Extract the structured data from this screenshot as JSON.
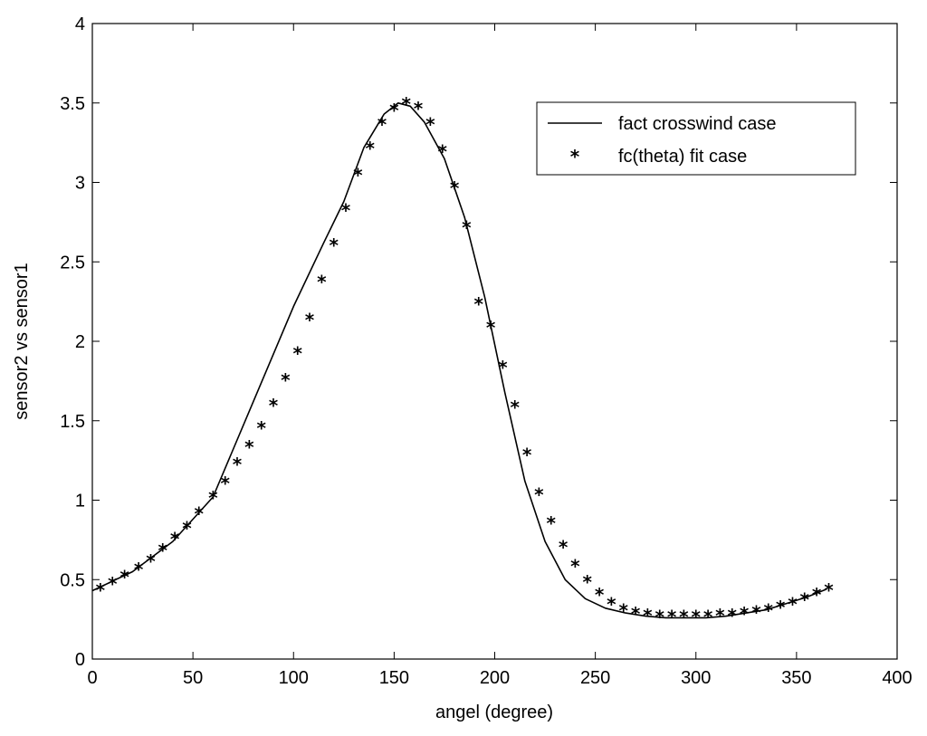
{
  "chart_data": {
    "type": "line",
    "title": "",
    "xlabel": "angel (degree)",
    "ylabel": "sensor2 vs sensor1",
    "xlim": [
      0,
      400
    ],
    "ylim": [
      0,
      4
    ],
    "xticks": [
      0,
      50,
      100,
      150,
      200,
      250,
      300,
      350,
      400
    ],
    "yticks": [
      0,
      0.5,
      1,
      1.5,
      2,
      2.5,
      3,
      3.5,
      4
    ],
    "xtick_labels": [
      "0",
      "50",
      "100",
      "150",
      "200",
      "250",
      "300",
      "350",
      "400"
    ],
    "ytick_labels": [
      "0",
      "0.5",
      "1",
      "1.5",
      "2",
      "2.5",
      "3",
      "3.5",
      "4"
    ],
    "grid": false,
    "legend": "top-right",
    "series": [
      {
        "name": "fact crosswind case",
        "style": "line",
        "color": "#000000",
        "x": [
          0,
          20,
          40,
          60,
          80,
          100,
          115,
          125,
          135,
          145,
          152,
          158,
          165,
          175,
          185,
          195,
          205,
          215,
          225,
          235,
          245,
          255,
          265,
          275,
          285,
          295,
          305,
          315,
          325,
          335,
          345,
          355,
          365
        ],
        "y": [
          0.43,
          0.55,
          0.74,
          1.02,
          1.62,
          2.22,
          2.62,
          2.88,
          3.22,
          3.43,
          3.5,
          3.48,
          3.38,
          3.15,
          2.78,
          2.28,
          1.68,
          1.12,
          0.74,
          0.5,
          0.38,
          0.32,
          0.29,
          0.27,
          0.26,
          0.26,
          0.26,
          0.27,
          0.29,
          0.31,
          0.35,
          0.39,
          0.44
        ]
      },
      {
        "name": "fc(theta) fit case",
        "style": "marker",
        "marker": "*",
        "color": "#000000",
        "x": [
          4,
          10,
          16,
          23,
          29,
          35,
          41,
          47,
          53,
          60,
          66,
          72,
          78,
          84,
          90,
          96,
          102,
          108,
          114,
          120,
          126,
          132,
          138,
          144,
          150,
          156,
          162,
          168,
          174,
          180,
          186,
          192,
          198,
          204,
          210,
          216,
          222,
          228,
          234,
          240,
          246,
          252,
          258,
          264,
          270,
          276,
          282,
          288,
          294,
          300,
          306,
          312,
          318,
          324,
          330,
          336,
          342,
          348,
          354,
          360,
          366
        ],
        "y": [
          0.44,
          0.48,
          0.52,
          0.57,
          0.62,
          0.69,
          0.76,
          0.83,
          0.92,
          1.02,
          1.11,
          1.23,
          1.34,
          1.46,
          1.6,
          1.76,
          1.93,
          2.14,
          2.38,
          2.61,
          2.83,
          3.05,
          3.22,
          3.37,
          3.46,
          3.5,
          3.47,
          3.37,
          3.2,
          2.97,
          2.72,
          2.24,
          2.09,
          1.84,
          1.59,
          1.29,
          1.04,
          0.86,
          0.71,
          0.59,
          0.49,
          0.41,
          0.35,
          0.31,
          0.29,
          0.28,
          0.27,
          0.27,
          0.27,
          0.27,
          0.27,
          0.28,
          0.28,
          0.29,
          0.3,
          0.31,
          0.33,
          0.35,
          0.38,
          0.41,
          0.44
        ]
      }
    ]
  }
}
